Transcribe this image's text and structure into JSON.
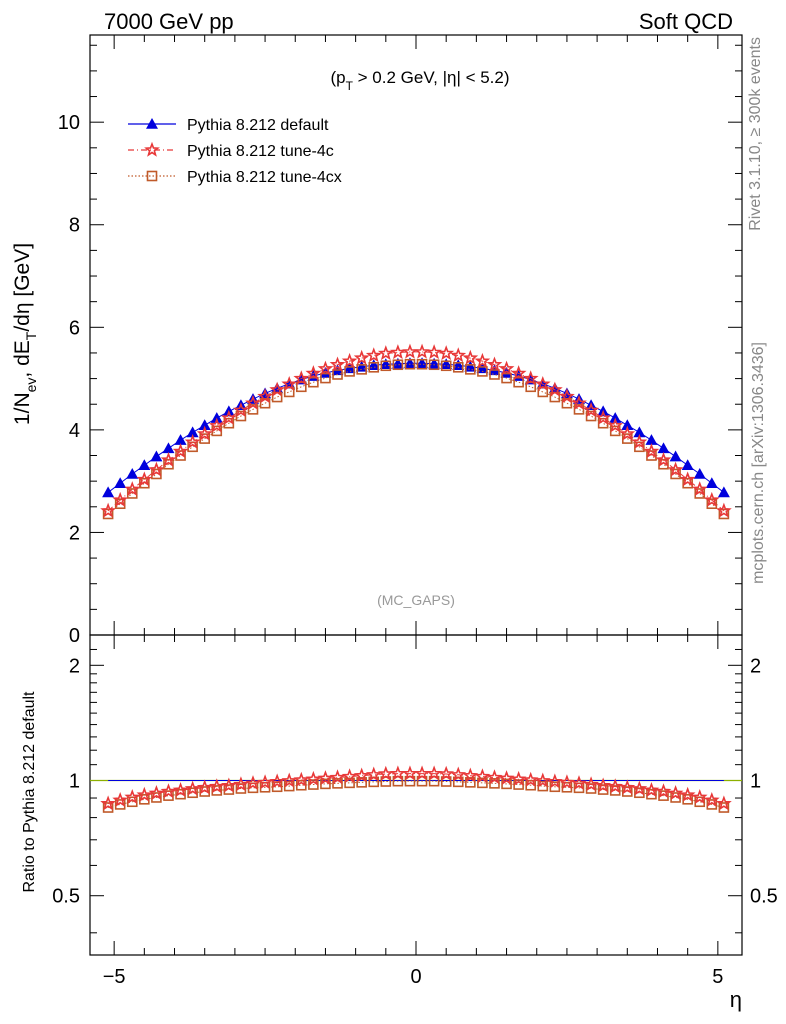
{
  "header": {
    "left": "7000 GeV pp",
    "right": "Soft QCD"
  },
  "side": {
    "rivet": "Rivet 3.1.10, ≥ 300k events",
    "mcplots": "mcplots.cern.ch [arXiv:1306.3436]"
  },
  "colors": {
    "default": "#0000dd",
    "tune4c": "#e83838",
    "tune4cx": "#c05a2a",
    "refline": "#8db000"
  },
  "chart_data": [
    {
      "type": "scatter",
      "title": "(p_T > 0.2 GeV, |η| < 5.2)",
      "ylabel": "1/N_ev, dE_T/dη [GeV]",
      "xlim": [
        -5.4,
        5.4
      ],
      "ylim": [
        0,
        11.7
      ],
      "x_ticks": [
        -5,
        0,
        5
      ],
      "y_ticks": [
        0,
        2,
        4,
        6,
        8,
        10
      ],
      "annotation": "(MC_GAPS)",
      "legend_position": "top-left",
      "x": [
        -5.1,
        -4.9,
        -4.7,
        -4.5,
        -4.3,
        -4.1,
        -3.9,
        -3.7,
        -3.5,
        -3.3,
        -3.1,
        -2.9,
        -2.7,
        -2.5,
        -2.3,
        -2.1,
        -1.9,
        -1.7,
        -1.5,
        -1.3,
        -1.1,
        -0.9,
        -0.7,
        -0.5,
        -0.3,
        -0.1,
        0.1,
        0.3,
        0.5,
        0.7,
        0.9,
        1.1,
        1.3,
        1.5,
        1.7,
        1.9,
        2.1,
        2.3,
        2.5,
        2.7,
        2.9,
        3.1,
        3.3,
        3.5,
        3.7,
        3.9,
        4.1,
        4.3,
        4.5,
        4.7,
        4.9,
        5.1
      ],
      "series": [
        {
          "name": "Pythia 8.212 default",
          "marker": "triangle",
          "values": [
            2.78,
            2.96,
            3.14,
            3.31,
            3.48,
            3.64,
            3.8,
            3.95,
            4.09,
            4.23,
            4.36,
            4.48,
            4.6,
            4.71,
            4.81,
            4.9,
            4.98,
            5.05,
            5.11,
            5.16,
            5.2,
            5.23,
            5.26,
            5.28,
            5.29,
            5.3,
            5.3,
            5.29,
            5.28,
            5.26,
            5.23,
            5.2,
            5.16,
            5.11,
            5.05,
            4.98,
            4.9,
            4.81,
            4.71,
            4.6,
            4.48,
            4.36,
            4.23,
            4.09,
            3.95,
            3.8,
            3.64,
            3.48,
            3.31,
            3.14,
            2.96,
            2.78
          ]
        },
        {
          "name": "Pythia 8.212 tune-4c",
          "marker": "star",
          "values": [
            2.42,
            2.63,
            2.84,
            3.03,
            3.22,
            3.41,
            3.58,
            3.76,
            3.92,
            4.08,
            4.23,
            4.38,
            4.52,
            4.65,
            4.78,
            4.89,
            5.0,
            5.1,
            5.19,
            5.27,
            5.34,
            5.4,
            5.45,
            5.49,
            5.51,
            5.52,
            5.52,
            5.51,
            5.49,
            5.45,
            5.4,
            5.34,
            5.27,
            5.19,
            5.1,
            5.0,
            4.89,
            4.78,
            4.65,
            4.52,
            4.38,
            4.23,
            4.08,
            3.92,
            3.76,
            3.58,
            3.41,
            3.22,
            3.03,
            2.84,
            2.63,
            2.42
          ]
        },
        {
          "name": "Pythia 8.212 tune-4cx",
          "marker": "open-square",
          "values": [
            2.36,
            2.56,
            2.76,
            2.96,
            3.14,
            3.33,
            3.5,
            3.67,
            3.83,
            3.98,
            4.13,
            4.27,
            4.4,
            4.52,
            4.64,
            4.74,
            4.84,
            4.93,
            5.01,
            5.08,
            5.14,
            5.18,
            5.22,
            5.25,
            5.27,
            5.28,
            5.28,
            5.27,
            5.25,
            5.22,
            5.18,
            5.14,
            5.08,
            5.01,
            4.93,
            4.84,
            4.74,
            4.64,
            4.52,
            4.4,
            4.27,
            4.13,
            3.98,
            3.83,
            3.67,
            3.5,
            3.33,
            3.14,
            2.96,
            2.76,
            2.56,
            2.36
          ]
        }
      ]
    },
    {
      "type": "scatter",
      "ylabel": "Ratio to Pythia 8.212 default",
      "xlabel": "η",
      "xlim": [
        -5.4,
        5.4
      ],
      "ylim": [
        0.35,
        2.4
      ],
      "y_scale": "log",
      "x_ticks": [
        -5,
        0,
        5
      ],
      "x_tick_labels": [
        "−5",
        "0",
        "5"
      ],
      "y_ticks": [
        0.5,
        1,
        2
      ],
      "reference_line": 1,
      "x": [
        -5.1,
        -4.9,
        -4.7,
        -4.5,
        -4.3,
        -4.1,
        -3.9,
        -3.7,
        -3.5,
        -3.3,
        -3.1,
        -2.9,
        -2.7,
        -2.5,
        -2.3,
        -2.1,
        -1.9,
        -1.7,
        -1.5,
        -1.3,
        -1.1,
        -0.9,
        -0.7,
        -0.5,
        -0.3,
        -0.1,
        0.1,
        0.3,
        0.5,
        0.7,
        0.9,
        1.1,
        1.3,
        1.5,
        1.7,
        1.9,
        2.1,
        2.3,
        2.5,
        2.7,
        2.9,
        3.1,
        3.3,
        3.5,
        3.7,
        3.9,
        4.1,
        4.3,
        4.5,
        4.7,
        4.9,
        5.1
      ],
      "series": [
        {
          "name": "Pythia 8.212 default",
          "values": [
            1,
            1,
            1,
            1,
            1,
            1,
            1,
            1,
            1,
            1,
            1,
            1,
            1,
            1,
            1,
            1,
            1,
            1,
            1,
            1,
            1,
            1,
            1,
            1,
            1,
            1,
            1,
            1,
            1,
            1,
            1,
            1,
            1,
            1,
            1,
            1,
            1,
            1,
            1,
            1,
            1,
            1,
            1,
            1,
            1,
            1,
            1,
            1,
            1,
            1,
            1,
            1
          ]
        },
        {
          "name": "Pythia 8.212 tune-4c",
          "values": [
            0.87,
            0.888,
            0.904,
            0.916,
            0.926,
            0.936,
            0.943,
            0.951,
            0.958,
            0.964,
            0.969,
            0.976,
            0.983,
            0.988,
            0.993,
            0.998,
            1.003,
            1.008,
            1.013,
            1.018,
            1.024,
            1.029,
            1.035,
            1.04,
            1.042,
            1.042,
            1.042,
            1.042,
            1.04,
            1.035,
            1.029,
            1.024,
            1.018,
            1.013,
            1.008,
            1.003,
            0.998,
            0.993,
            0.988,
            0.983,
            0.976,
            0.969,
            0.964,
            0.958,
            0.951,
            0.943,
            0.936,
            0.926,
            0.916,
            0.904,
            0.888,
            0.87
          ]
        },
        {
          "name": "Pythia 8.212 tune-4cx",
          "values": [
            0.85,
            0.866,
            0.88,
            0.893,
            0.903,
            0.913,
            0.921,
            0.929,
            0.936,
            0.942,
            0.947,
            0.953,
            0.957,
            0.96,
            0.963,
            0.967,
            0.972,
            0.976,
            0.98,
            0.983,
            0.986,
            0.989,
            0.992,
            0.994,
            0.996,
            0.996,
            0.996,
            0.996,
            0.994,
            0.992,
            0.989,
            0.986,
            0.983,
            0.98,
            0.976,
            0.972,
            0.967,
            0.963,
            0.96,
            0.957,
            0.953,
            0.947,
            0.942,
            0.936,
            0.929,
            0.921,
            0.913,
            0.903,
            0.893,
            0.88,
            0.866,
            0.85
          ]
        }
      ]
    }
  ]
}
